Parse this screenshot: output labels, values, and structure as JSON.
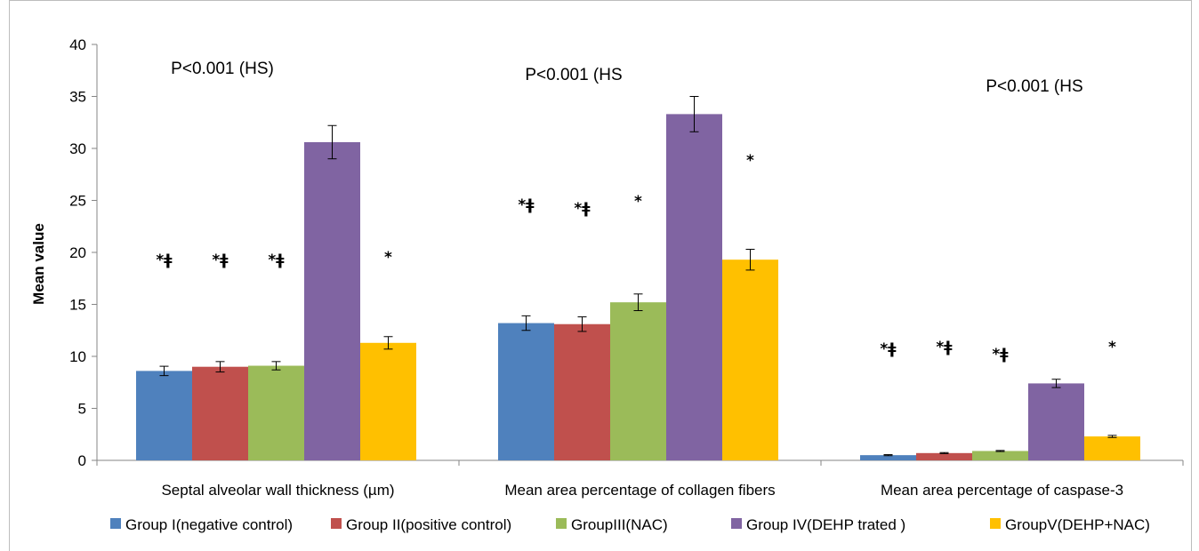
{
  "chart_data": {
    "type": "bar",
    "categories": [
      "Septal alveolar wall thickness (µm)",
      "Mean area percentage of collagen fibers",
      "Mean area percentage of caspase-3"
    ],
    "series": [
      {
        "name": "Group I(negative control)",
        "color": "#4F81BD",
        "values": [
          8.6,
          13.2,
          0.5
        ],
        "errors": [
          0.45,
          0.7,
          0.05
        ]
      },
      {
        "name": "Group II(positive control)",
        "color": "#C0504D",
        "values": [
          9.0,
          13.1,
          0.7
        ],
        "errors": [
          0.5,
          0.7,
          0.05
        ]
      },
      {
        "name": "GroupIII(NAC)",
        "color": "#9BBB59",
        "values": [
          9.1,
          15.2,
          0.9
        ],
        "errors": [
          0.4,
          0.8,
          0.05
        ]
      },
      {
        "name": "Group IV(DEHP trated )",
        "color": "#8064A2",
        "values": [
          30.6,
          33.3,
          7.4
        ],
        "errors": [
          1.6,
          1.7,
          0.4
        ]
      },
      {
        "name": "GroupV(DEHP+NAC)",
        "color": "#FFC000",
        "values": [
          11.3,
          19.3,
          2.3
        ],
        "errors": [
          0.6,
          1.0,
          0.1
        ]
      }
    ],
    "ylabel": "Mean value",
    "xlabel": "",
    "ylim": [
      0,
      40
    ],
    "yticks": [
      "0",
      "5",
      "10",
      "15",
      "20",
      "25",
      "30",
      "35",
      "40"
    ],
    "grid": false,
    "legend_position": "bottom",
    "annotations": {
      "pvalues": [
        "P<0.001 (HS)",
        "P<0.001 (HS",
        "P<0.001 (HS"
      ],
      "significance": [
        [
          "*ǂ",
          "*ǂ",
          "*ǂ",
          "",
          "*"
        ],
        [
          "*ǂ",
          "*ǂ",
          "*",
          "",
          "*"
        ],
        [
          "*ǂ",
          "*ǂ",
          "*ǂ",
          "",
          "*"
        ]
      ]
    }
  }
}
